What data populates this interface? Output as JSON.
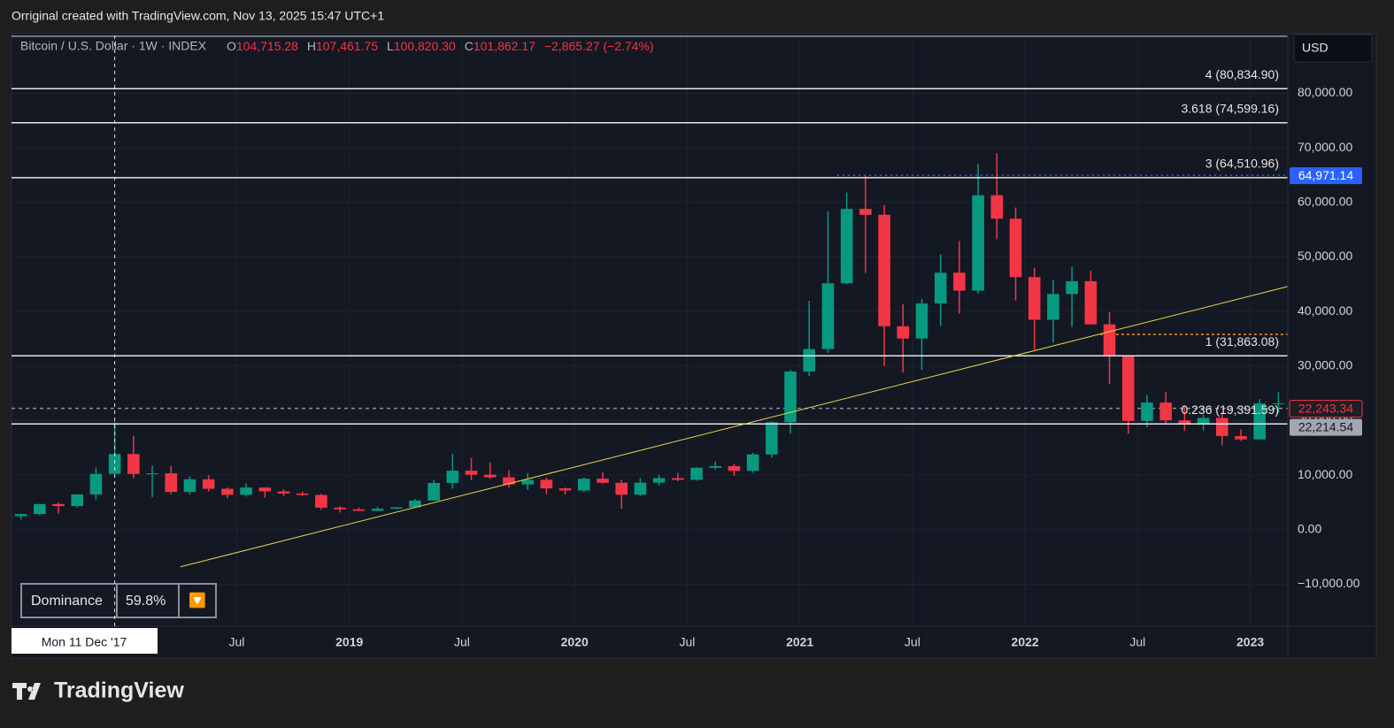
{
  "header": {
    "caption": "Orriginal created with TradingView.com, Nov 13, 2025 15:47 UTC+1"
  },
  "chart_data": {
    "type": "candlestick",
    "title": "Bitcoin / U.S. Dollar · 1W · INDEX",
    "ohlc_legend": {
      "o": "O",
      "o_value": "104,715.28",
      "h": "H",
      "h_value": "107,461.75",
      "l": "L",
      "l_value": "100,820.30",
      "c": "C",
      "c_value": "101,862.17",
      "change": "−2,865.27 (−2.74%)"
    },
    "currency": "USD",
    "up_color": "#089981",
    "down_color": "#f23645",
    "x": [
      "2017-07",
      "2017-08",
      "2017-09",
      "2017-10",
      "2017-11",
      "2017-12",
      "2018-01",
      "2018-02",
      "2018-03",
      "2018-04",
      "2018-05",
      "2018-06",
      "2018-07",
      "2018-08",
      "2018-09",
      "2018-10",
      "2018-11",
      "2018-12",
      "2019-01",
      "2019-02",
      "2019-03",
      "2019-04",
      "2019-05",
      "2019-06",
      "2019-07",
      "2019-08",
      "2019-09",
      "2019-10",
      "2019-11",
      "2019-12",
      "2020-01",
      "2020-02",
      "2020-03",
      "2020-04",
      "2020-05",
      "2020-06",
      "2020-07",
      "2020-08",
      "2020-09",
      "2020-10",
      "2020-11",
      "2020-12",
      "2021-01",
      "2021-02",
      "2021-03",
      "2021-04",
      "2021-05",
      "2021-06",
      "2021-07",
      "2021-08",
      "2021-09",
      "2021-10",
      "2021-11",
      "2021-12",
      "2022-01",
      "2022-02",
      "2022-03",
      "2022-04",
      "2022-05",
      "2022-06",
      "2022-07",
      "2022-08",
      "2022-09",
      "2022-10",
      "2022-11",
      "2022-12",
      "2023-01",
      "2023-02"
    ],
    "open": [
      2480,
      2870,
      4700,
      4340,
      6470,
      10230,
      13860,
      10220,
      10330,
      6930,
      9240,
      7500,
      6400,
      7730,
      7020,
      6630,
      6370,
      4040,
      3740,
      3460,
      3850,
      4100,
      5350,
      8570,
      10820,
      10080,
      9600,
      8290,
      9150,
      7570,
      7190,
      9350,
      8600,
      6420,
      8620,
      9450,
      9140,
      11350,
      11650,
      10780,
      13800,
      19700,
      28990,
      33110,
      45160,
      58800,
      57720,
      37300,
      35040,
      41460,
      47100,
      43820,
      61300,
      57000,
      46300,
      38480,
      43190,
      45540,
      37640,
      31790,
      19940,
      23300,
      20050,
      19420,
      20490,
      17170,
      16550,
      23140
    ],
    "high": [
      2950,
      4770,
      4980,
      6470,
      11400,
      19800,
      17200,
      11800,
      11700,
      9770,
      10000,
      7760,
      8490,
      7760,
      7400,
      6980,
      6600,
      4300,
      4100,
      4200,
      4110,
      5640,
      9100,
      13880,
      13150,
      12330,
      10900,
      10370,
      9520,
      7750,
      9580,
      10500,
      9190,
      9460,
      10070,
      10400,
      11450,
      12470,
      12070,
      14100,
      19850,
      29300,
      41950,
      58350,
      61790,
      64850,
      59500,
      41300,
      42300,
      50500,
      52920,
      67000,
      69000,
      59050,
      47990,
      45800,
      48190,
      47440,
      39840,
      31990,
      24670,
      25200,
      22790,
      21080,
      21470,
      18390,
      23950,
      25250
    ],
    "low": [
      1830,
      2670,
      2970,
      4110,
      5520,
      10800,
      9400,
      5950,
      6530,
      6430,
      7030,
      5780,
      6070,
      5880,
      6130,
      6180,
      3650,
      3160,
      3400,
      3400,
      3730,
      4080,
      5330,
      7520,
      9070,
      9320,
      7710,
      7300,
      6520,
      6430,
      6870,
      8450,
      3860,
      6160,
      8130,
      8900,
      8990,
      11000,
      9880,
      10400,
      13200,
      17600,
      28130,
      32400,
      45000,
      47050,
      30000,
      28800,
      29280,
      37330,
      39600,
      43300,
      53250,
      42000,
      32950,
      34320,
      37170,
      37580,
      26700,
      17620,
      18780,
      19550,
      18150,
      18190,
      15480,
      16280,
      16500,
      21400
    ],
    "close": [
      2870,
      4700,
      4340,
      6470,
      10230,
      13860,
      10220,
      10330,
      6930,
      9240,
      7500,
      6400,
      7730,
      7020,
      6630,
      6370,
      4040,
      3740,
      3460,
      3850,
      4100,
      5350,
      8570,
      10820,
      10080,
      9600,
      8290,
      9150,
      7570,
      7190,
      9350,
      8600,
      6420,
      8620,
      9450,
      9140,
      11350,
      11650,
      10780,
      13800,
      19700,
      28990,
      33110,
      45160,
      58800,
      57720,
      37300,
      35040,
      41460,
      47100,
      43820,
      61300,
      57000,
      46300,
      38480,
      43190,
      45540,
      37640,
      31790,
      19940,
      23300,
      20050,
      19420,
      20490,
      17170,
      16550,
      23140,
      23150
    ],
    "xlim": [
      "2017-07",
      "2023-03"
    ],
    "xticks": [
      {
        "value": "2018-07",
        "label": "Jul"
      },
      {
        "value": "2019-01",
        "label": "2019"
      },
      {
        "value": "2019-07",
        "label": "Jul"
      },
      {
        "value": "2020-01",
        "label": "2020"
      },
      {
        "value": "2020-07",
        "label": "Jul"
      },
      {
        "value": "2021-01",
        "label": "2021"
      },
      {
        "value": "2021-07",
        "label": "Jul"
      },
      {
        "value": "2022-01",
        "label": "2022"
      },
      {
        "value": "2022-07",
        "label": "Jul"
      },
      {
        "value": "2023-01",
        "label": "2023"
      }
    ],
    "ylim": [
      -17700,
      90600
    ],
    "yticks": [
      {
        "value": -10000,
        "label": "−10,000.00"
      },
      {
        "value": 0,
        "label": "0.00"
      },
      {
        "value": 10000,
        "label": "10,000.00"
      },
      {
        "value": 20000,
        "label": "20,000.00"
      },
      {
        "value": 30000,
        "label": "30,000.00"
      },
      {
        "value": 40000,
        "label": "40,000.00"
      },
      {
        "value": 50000,
        "label": "50,000.00"
      },
      {
        "value": 60000,
        "label": "60,000.00"
      },
      {
        "value": 70000,
        "label": "70,000.00"
      },
      {
        "value": 80000,
        "label": "80,000.00"
      }
    ],
    "grid": true,
    "levels": [
      {
        "label": "4 (80,834.90)",
        "value": 80834.9
      },
      {
        "label": "3.618 (74,599.16)",
        "value": 74599.16
      },
      {
        "label": "3 (64,510.96)",
        "value": 64510.96
      },
      {
        "label": "1 (31,863.08)",
        "value": 31863.08
      },
      {
        "label": "0.236 (19,391.59)",
        "value": 19391.59
      }
    ],
    "trendlines": [
      {
        "x": [
          "2018-04",
          "2023-03"
        ],
        "y": [
          -6800,
          44570
        ],
        "color": "#e8d74a"
      }
    ],
    "hlines": [
      {
        "x": [
          "2021-03",
          "2023-03"
        ],
        "value": 64971.14,
        "color": "#2962ff",
        "dash": "2 4"
      },
      {
        "x": [
          "2022-05",
          "2023-03"
        ],
        "value": 35800,
        "color": "#f7931a",
        "dash": "3 3"
      },
      {
        "x": [
          "2017-07",
          "2023-03"
        ],
        "value": 22243.34,
        "color": "#8a8f9c",
        "dash": "4 4"
      }
    ],
    "price_tags": [
      {
        "label": "64,971.14",
        "value": 64971.14,
        "bg": "#2962ff",
        "fg": "#ffffff"
      },
      {
        "label": "22,243.34",
        "value": 22243.34,
        "bg": "#1e1e24",
        "fg": "#f23645"
      },
      {
        "label": "22,214.54",
        "value": 22214.54,
        "bg": "#a3a6af",
        "fg": "#131722"
      }
    ],
    "crosshair": {
      "x": "2017-12",
      "label": "Mon 11 Dec '17"
    },
    "dominance": {
      "label": "Dominance",
      "value": "59.8%",
      "icon": "🔽"
    }
  },
  "logo": "TradingView"
}
